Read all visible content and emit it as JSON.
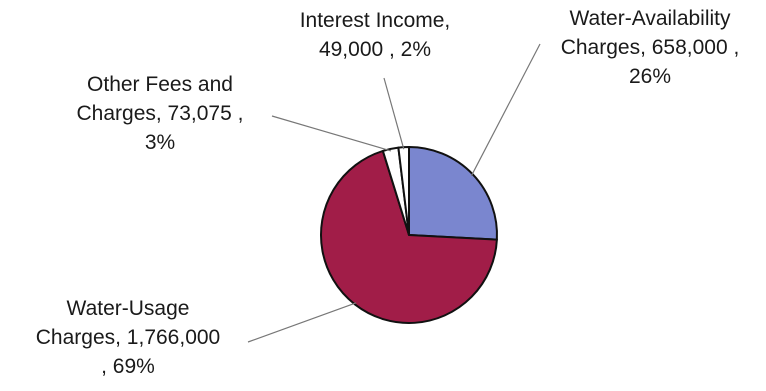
{
  "chart_data": {
    "type": "pie",
    "title": "",
    "slices": [
      {
        "name": "Water-Availability Charges",
        "value": 658000,
        "percent": 26,
        "color": "#7a86cf",
        "label_lines": [
          "Water-Availability",
          "Charges, 658,000 ,",
          "26%"
        ]
      },
      {
        "name": "Water-Usage Charges",
        "value": 1766000,
        "percent": 69,
        "color": "#a11d48",
        "label_lines": [
          "Water-Usage",
          "Charges, 1,766,000",
          ", 69%"
        ]
      },
      {
        "name": "Other Fees and Charges",
        "value": 73075,
        "percent": 3,
        "color": "#ffffff",
        "label_lines": [
          "Other Fees and",
          "Charges, 73,075 ,",
          "3%"
        ]
      },
      {
        "name": "Interest Income",
        "value": 49000,
        "percent": 2,
        "color": "#ffffff",
        "label_lines": [
          "Interest Income,",
          "49,000 , 2%"
        ]
      }
    ]
  }
}
